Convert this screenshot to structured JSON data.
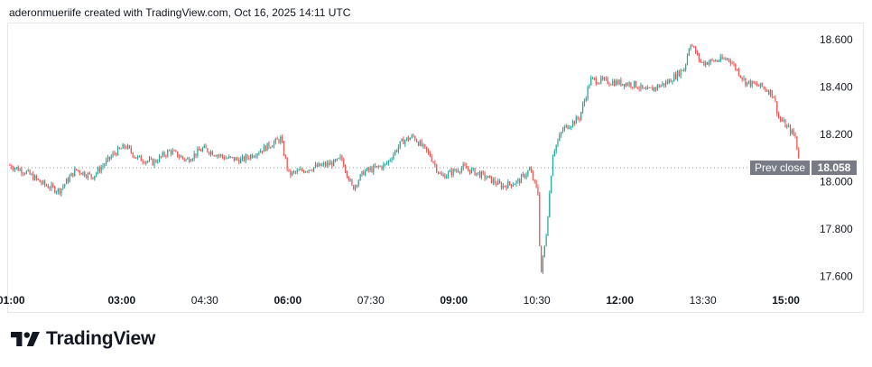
{
  "header": {
    "attribution": "aderonmueriife created with TradingView.com, Oct 16, 2025 14:11 UTC"
  },
  "brand": {
    "name": "TradingView",
    "logo_icon": "tradingview-logo-icon"
  },
  "colors": {
    "up": "#26a69a",
    "down": "#ef5350",
    "prev_close_label_bg": "#787b86",
    "axis_text": "#131722",
    "dotted_line": "#9598a1"
  },
  "chart_data": {
    "type": "candlestick",
    "x_ticks": [
      {
        "label": "01:00",
        "hour": 1.0,
        "bold": true
      },
      {
        "label": "03:00",
        "hour": 3.0,
        "bold": true
      },
      {
        "label": "04:30",
        "hour": 4.5,
        "bold": false
      },
      {
        "label": "06:00",
        "hour": 6.0,
        "bold": true
      },
      {
        "label": "07:30",
        "hour": 7.5,
        "bold": false
      },
      {
        "label": "09:00",
        "hour": 9.0,
        "bold": true
      },
      {
        "label": "10:30",
        "hour": 10.5,
        "bold": false
      },
      {
        "label": "12:00",
        "hour": 12.0,
        "bold": true
      },
      {
        "label": "13:30",
        "hour": 13.5,
        "bold": false
      },
      {
        "label": "15:00",
        "hour": 15.0,
        "bold": true
      }
    ],
    "y_ticks": [
      "18.600",
      "18.400",
      "18.200",
      "18.000",
      "17.800",
      "17.600"
    ],
    "ylim": [
      17.54,
      18.66
    ],
    "xlim": [
      0.98,
      15.3
    ],
    "prev_close": {
      "label": "Prev close",
      "value": "18.058"
    },
    "price_path": [
      [
        0.98,
        18.07
      ],
      [
        1.3,
        18.04
      ],
      [
        1.6,
        17.99
      ],
      [
        1.9,
        17.96
      ],
      [
        2.2,
        18.05
      ],
      [
        2.5,
        18.02
      ],
      [
        2.9,
        18.12
      ],
      [
        3.1,
        18.15
      ],
      [
        3.3,
        18.1
      ],
      [
        3.6,
        18.08
      ],
      [
        3.9,
        18.13
      ],
      [
        4.2,
        18.09
      ],
      [
        4.5,
        18.14
      ],
      [
        4.9,
        18.1
      ],
      [
        5.2,
        18.09
      ],
      [
        5.6,
        18.14
      ],
      [
        5.9,
        18.18
      ],
      [
        6.05,
        18.03
      ],
      [
        6.5,
        18.06
      ],
      [
        6.9,
        18.08
      ],
      [
        7.0,
        18.1
      ],
      [
        7.2,
        17.97
      ],
      [
        7.4,
        18.04
      ],
      [
        7.8,
        18.07
      ],
      [
        8.1,
        18.17
      ],
      [
        8.3,
        18.19
      ],
      [
        8.6,
        18.11
      ],
      [
        8.8,
        18.02
      ],
      [
        9.2,
        18.06
      ],
      [
        9.6,
        18.02
      ],
      [
        9.9,
        17.98
      ],
      [
        10.2,
        18.0
      ],
      [
        10.4,
        18.05
      ],
      [
        10.55,
        17.95
      ],
      [
        10.6,
        17.6
      ],
      [
        10.7,
        17.78
      ],
      [
        10.82,
        18.12
      ],
      [
        11.0,
        18.22
      ],
      [
        11.3,
        18.27
      ],
      [
        11.5,
        18.43
      ],
      [
        11.9,
        18.42
      ],
      [
        12.3,
        18.41
      ],
      [
        12.5,
        18.38
      ],
      [
        12.9,
        18.42
      ],
      [
        13.2,
        18.48
      ],
      [
        13.3,
        18.59
      ],
      [
        13.5,
        18.5
      ],
      [
        14.0,
        18.52
      ],
      [
        14.3,
        18.42
      ],
      [
        14.6,
        18.4
      ],
      [
        14.8,
        18.37
      ],
      [
        14.9,
        18.27
      ],
      [
        15.2,
        18.19
      ],
      [
        15.25,
        18.11
      ]
    ]
  }
}
